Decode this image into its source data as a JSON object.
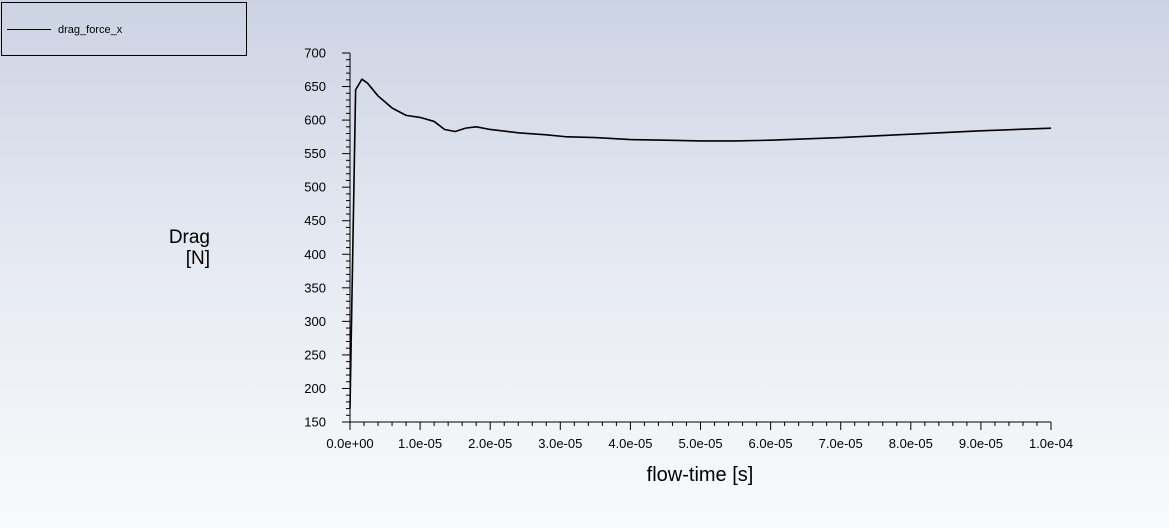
{
  "chart_data": {
    "type": "line",
    "title": "",
    "xlabel": "flow-time [s]",
    "ylabel": [
      "Drag",
      "[N]"
    ],
    "xlim": [
      0,
      0.0001
    ],
    "ylim": [
      150,
      700
    ],
    "x_ticks": [
      0,
      1e-05,
      2e-05,
      3e-05,
      4e-05,
      5e-05,
      6e-05,
      7e-05,
      8e-05,
      9e-05,
      0.0001
    ],
    "x_tick_labels": [
      "0.0e+00",
      "1.0e-05",
      "2.0e-05",
      "3.0e-05",
      "4.0e-05",
      "5.0e-05",
      "6.0e-05",
      "7.0e-05",
      "8.0e-05",
      "9.0e-05",
      "1.0e-04"
    ],
    "y_ticks": [
      150,
      200,
      250,
      300,
      350,
      400,
      450,
      500,
      550,
      600,
      650,
      700
    ],
    "y_tick_labels": [
      "150",
      "200",
      "250",
      "300",
      "350",
      "400",
      "450",
      "500",
      "550",
      "600",
      "650",
      "700"
    ],
    "legend_position": "top-left",
    "grid": false,
    "series": [
      {
        "name": "drag_force_x",
        "color": "#000000",
        "points": [
          [
            0.0,
            170
          ],
          [
            8e-07,
            645
          ],
          [
            1.7e-06,
            661
          ],
          [
            2.5e-06,
            655
          ],
          [
            4e-06,
            636
          ],
          [
            6e-06,
            618
          ],
          [
            8e-06,
            607
          ],
          [
            1e-05,
            604
          ],
          [
            1.2e-05,
            598
          ],
          [
            1.35e-05,
            586
          ],
          [
            1.5e-05,
            583
          ],
          [
            1.65e-05,
            588
          ],
          [
            1.8e-05,
            590
          ],
          [
            2e-05,
            586
          ],
          [
            2.4e-05,
            581
          ],
          [
            2.8e-05,
            578
          ],
          [
            3.1e-05,
            575
          ],
          [
            3.5e-05,
            574
          ],
          [
            4e-05,
            571
          ],
          [
            4.5e-05,
            570
          ],
          [
            5e-05,
            569
          ],
          [
            5.5e-05,
            569
          ],
          [
            6e-05,
            570
          ],
          [
            7e-05,
            574
          ],
          [
            8e-05,
            579
          ],
          [
            9e-05,
            584
          ],
          [
            0.0001,
            588
          ]
        ]
      }
    ]
  }
}
